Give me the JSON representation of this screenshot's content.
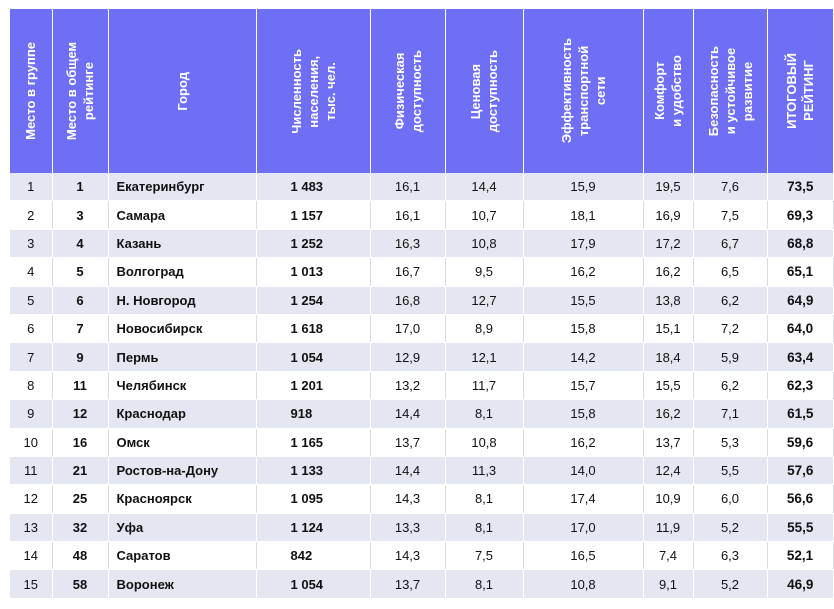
{
  "headers": [
    "Место в группе",
    "Место в общем\nрейтинге",
    "Город",
    "Численность\nнаселения,\nтыс. чел.",
    "Физическая\nдоступность",
    "Ценовая\nдоступность",
    "Эффективность\nтранспортной\nсети",
    "Комфорт\nи удобство",
    "Безопасность\nи устойчивое\nразвитие",
    "ИТОГОВЫЙ\nРЕЙТИНГ"
  ],
  "rows": [
    [
      "1",
      "1",
      "Екатеринбург",
      "1 483",
      "16,1",
      "14,4",
      "15,9",
      "19,5",
      "7,6",
      "73,5"
    ],
    [
      "2",
      "3",
      "Самара",
      "1 157",
      "16,1",
      "10,7",
      "18,1",
      "16,9",
      "7,5",
      "69,3"
    ],
    [
      "3",
      "4",
      "Казань",
      "1 252",
      "16,3",
      "10,8",
      "17,9",
      "17,2",
      "6,7",
      "68,8"
    ],
    [
      "4",
      "5",
      "Волгоград",
      "1 013",
      "16,7",
      "9,5",
      "16,2",
      "16,2",
      "6,5",
      "65,1"
    ],
    [
      "5",
      "6",
      "Н. Новгород",
      "1 254",
      "16,8",
      "12,7",
      "15,5",
      "13,8",
      "6,2",
      "64,9"
    ],
    [
      "6",
      "7",
      "Новосибирск",
      "1 618",
      "17,0",
      "8,9",
      "15,8",
      "15,1",
      "7,2",
      "64,0"
    ],
    [
      "7",
      "9",
      "Пермь",
      "1 054",
      "12,9",
      "12,1",
      "14,2",
      "18,4",
      "5,9",
      "63,4"
    ],
    [
      "8",
      "11",
      "Челябинск",
      "1 201",
      "13,2",
      "11,7",
      "15,7",
      "15,5",
      "6,2",
      "62,3"
    ],
    [
      "9",
      "12",
      "Краснодар",
      "918",
      "14,4",
      "8,1",
      "15,8",
      "16,2",
      "7,1",
      "61,5"
    ],
    [
      "10",
      "16",
      "Омск",
      "1 165",
      "13,7",
      "10,8",
      "16,2",
      "13,7",
      "5,3",
      "59,6"
    ],
    [
      "11",
      "21",
      "Ростов-на-Дону",
      "1 133",
      "14,4",
      "11,3",
      "14,0",
      "12,4",
      "5,5",
      "57,6"
    ],
    [
      "12",
      "25",
      "Красноярск",
      "1 095",
      "14,3",
      "8,1",
      "17,4",
      "10,9",
      "6,0",
      "56,6"
    ],
    [
      "13",
      "32",
      "Уфа",
      "1 124",
      "13,3",
      "8,1",
      "17,0",
      "11,9",
      "5,2",
      "55,5"
    ],
    [
      "14",
      "48",
      "Саратов",
      "842",
      "14,3",
      "7,5",
      "16,5",
      "7,4",
      "6,3",
      "52,1"
    ],
    [
      "15",
      "58",
      "Воронеж",
      "1 054",
      "13,7",
      "8,1",
      "10,8",
      "9,1",
      "5,2",
      "46,9"
    ]
  ],
  "colors": {
    "header_bg": "#6e6ff5",
    "stripe": "#e4e6f2"
  }
}
